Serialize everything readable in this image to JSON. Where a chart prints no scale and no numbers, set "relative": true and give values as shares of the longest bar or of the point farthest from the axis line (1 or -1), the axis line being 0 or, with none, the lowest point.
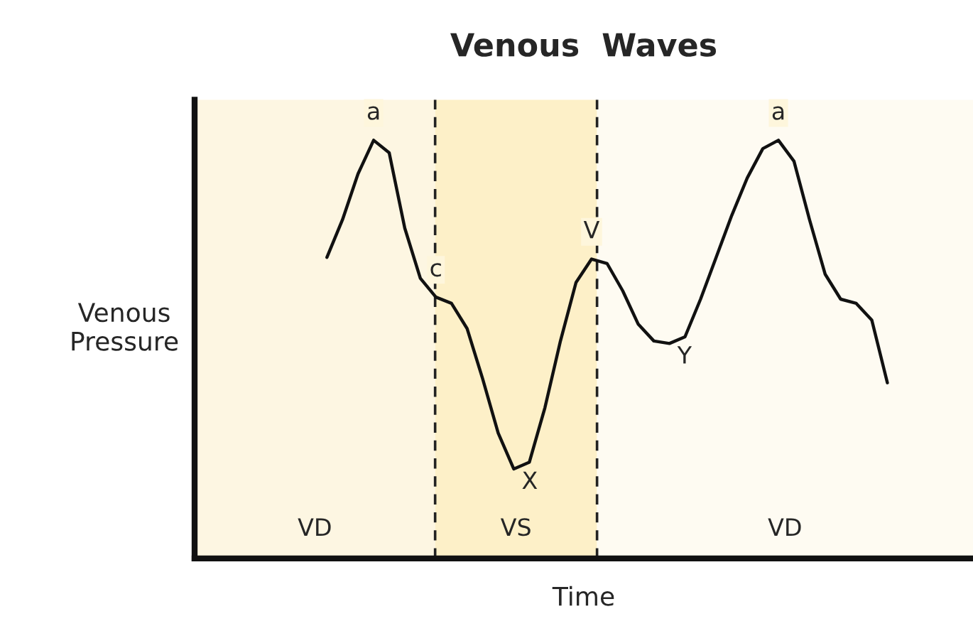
{
  "chart_data": {
    "type": "line",
    "title": "Venous  Waves",
    "xlabel": "Time",
    "relative": true,
    "categories": [
      null,
      null,
      null,
      null,
      null,
      null,
      null,
      null,
      null,
      null,
      null,
      null,
      null,
      null,
      null,
      null,
      null,
      null,
      null,
      null,
      null,
      null,
      null,
      null,
      null,
      null,
      null,
      null,
      null,
      null,
      null,
      null,
      null,
      null,
      null,
      null,
      null
    ],
    "series": [
      {
        "color": "#111111",
        "values": [
          0.72,
          0.81,
          0.92,
          1.0,
          0.97,
          0.79,
          0.67,
          0.625,
          0.61,
          0.55,
          0.43,
          0.3,
          0.214,
          0.23,
          0.36,
          0.52,
          0.66,
          0.716,
          0.705,
          0.64,
          0.56,
          0.52,
          0.514,
          0.53,
          0.62,
          0.72,
          0.82,
          0.91,
          0.98,
          1.0,
          0.95,
          0.81,
          0.68,
          0.62,
          0.61,
          0.57,
          0.42
        ]
      }
    ],
    "annotations": [
      "VD",
      "VS",
      "VD",
      "Venous\nPressure",
      {
        "text": "a",
        "y": 1.0
      },
      {
        "text": "c",
        "y": 0.625
      },
      {
        "text": "X",
        "y": 0.214
      },
      {
        "text": "V",
        "y": 0.716
      },
      {
        "text": "Y",
        "y": 0.514
      },
      {
        "text": "a",
        "y": 1.0
      }
    ]
  }
}
